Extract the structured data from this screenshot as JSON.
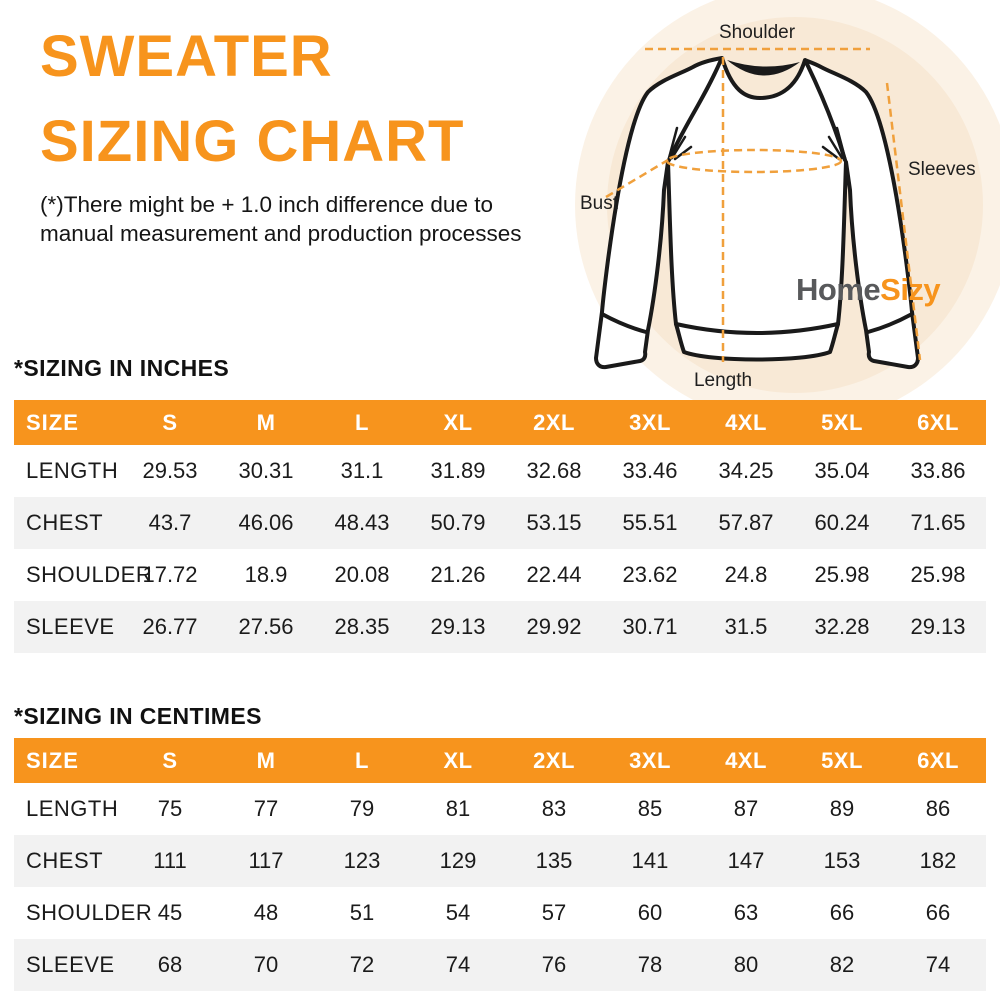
{
  "title": {
    "line1": "SWEATER",
    "line2": "SIZING CHART"
  },
  "disclaimer": {
    "line1": "(*)There might be + 1.0 inch difference due to",
    "line2": "manual measurement and production processes"
  },
  "figure": {
    "labels": {
      "shoulder": "Shoulder",
      "sleeves": "Sleeves",
      "bust": "Bust",
      "length": "Length"
    },
    "logo": {
      "part1": "Home",
      "part2": "Sizy"
    }
  },
  "colors": {
    "accent": "#F7941D",
    "dash": "#F0A03C",
    "row_alt": "#F2F2F2",
    "text": "#1B1B1B",
    "logo_gray": "#58595B",
    "circle_outer": "#FBF2E6",
    "circle_inner": "#F8E9D6"
  },
  "tables": [
    {
      "heading": "*SIZING IN INCHES",
      "columns": [
        "SIZE",
        "S",
        "M",
        "L",
        "XL",
        "2XL",
        "3XL",
        "4XL",
        "5XL",
        "6XL"
      ],
      "rows": [
        {
          "label": "LENGTH",
          "values": [
            "29.53",
            "30.31",
            "31.1",
            "31.89",
            "32.68",
            "33.46",
            "34.25",
            "35.04",
            "33.86"
          ]
        },
        {
          "label": "CHEST",
          "values": [
            "43.7",
            "46.06",
            "48.43",
            "50.79",
            "53.15",
            "55.51",
            "57.87",
            "60.24",
            "71.65"
          ]
        },
        {
          "label": "SHOULDER",
          "values": [
            "17.72",
            "18.9",
            "20.08",
            "21.26",
            "22.44",
            "23.62",
            "24.8",
            "25.98",
            "25.98"
          ]
        },
        {
          "label": "SLEEVE",
          "values": [
            "26.77",
            "27.56",
            "28.35",
            "29.13",
            "29.92",
            "30.71",
            "31.5",
            "32.28",
            "29.13"
          ]
        }
      ]
    },
    {
      "heading": "*SIZING IN CENTIMES",
      "columns": [
        "SIZE",
        "S",
        "M",
        "L",
        "XL",
        "2XL",
        "3XL",
        "4XL",
        "5XL",
        "6XL"
      ],
      "rows": [
        {
          "label": "LENGTH",
          "values": [
            "75",
            "77",
            "79",
            "81",
            "83",
            "85",
            "87",
            "89",
            "86"
          ]
        },
        {
          "label": "CHEST",
          "values": [
            "111",
            "117",
            "123",
            "129",
            "135",
            "141",
            "147",
            "153",
            "182"
          ]
        },
        {
          "label": "SHOULDER",
          "values": [
            "45",
            "48",
            "51",
            "54",
            "57",
            "60",
            "63",
            "66",
            "66"
          ]
        },
        {
          "label": "SLEEVE",
          "values": [
            "68",
            "70",
            "72",
            "74",
            "76",
            "78",
            "80",
            "82",
            "74"
          ]
        }
      ]
    }
  ]
}
